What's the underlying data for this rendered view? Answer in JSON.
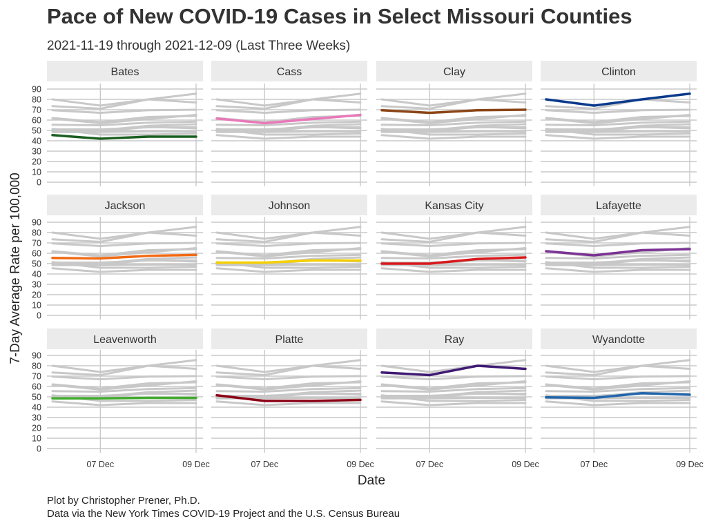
{
  "title": "Pace of New COVID-19 Cases in Select Missouri Counties",
  "subtitle": "2021-11-19 through 2021-12-09 (Last Three Weeks)",
  "caption": {
    "line1": "Plot by Christopher Prener, Ph.D.",
    "line2": "Data via the New York Times COVID-19 Project and the U.S. Census Bureau"
  },
  "chart_data": {
    "type": "line",
    "layout": "small-multiples",
    "xlabel": "Date",
    "ylabel": "7-Day Average Rate per 100,000",
    "x": [
      "2021-12-06",
      "2021-12-07",
      "2021-12-08",
      "2021-12-09"
    ],
    "x_ticks": [
      "07 Dec",
      "09 Dec"
    ],
    "ylim": [
      0,
      90
    ],
    "y_ticks": [
      0,
      10,
      20,
      30,
      40,
      50,
      60,
      70,
      80,
      90
    ],
    "grid": true,
    "legend": "none",
    "background_color": "#c8c8c8",
    "strip_color": "#ebebeb",
    "panels": [
      {
        "name": "Bates",
        "color": "#1a5e1f",
        "values": [
          45.5,
          42,
          44,
          44
        ]
      },
      {
        "name": "Cass",
        "color": "#e879b9",
        "values": [
          61.5,
          57,
          61,
          65
        ]
      },
      {
        "name": "Clay",
        "color": "#8b4516",
        "values": [
          69.5,
          67,
          69.5,
          70
        ]
      },
      {
        "name": "Clinton",
        "color": "#0b3a8c",
        "values": [
          80,
          74,
          80,
          85.5
        ]
      },
      {
        "name": "Jackson",
        "color": "#f16913",
        "values": [
          55.5,
          55,
          57.5,
          58.5
        ]
      },
      {
        "name": "Johnson",
        "color": "#f5d000",
        "values": [
          51,
          51,
          53,
          53
        ]
      },
      {
        "name": "Kansas City",
        "color": "#d7191c",
        "values": [
          50,
          50,
          54.5,
          56
        ]
      },
      {
        "name": "Lafayette",
        "color": "#7b3294",
        "values": [
          62,
          58,
          63,
          64
        ]
      },
      {
        "name": "Leavenworth",
        "color": "#41ab2d",
        "values": [
          48.5,
          48.5,
          49,
          49
        ]
      },
      {
        "name": "Platte",
        "color": "#8b0015",
        "values": [
          51.5,
          46,
          46,
          47
        ]
      },
      {
        "name": "Ray",
        "color": "#3f1a74",
        "values": [
          73.5,
          71,
          80,
          77
        ]
      },
      {
        "name": "Wyandotte",
        "color": "#2166ac",
        "values": [
          49.5,
          49,
          53.5,
          52
        ]
      }
    ]
  }
}
